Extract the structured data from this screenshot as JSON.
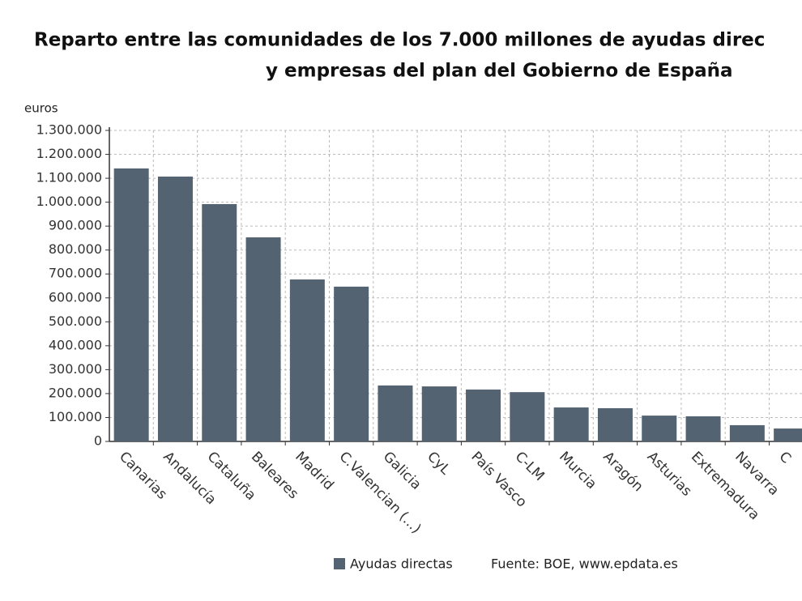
{
  "chart_data": {
    "type": "bar",
    "title": [
      "Reparto entre las comunidades de los 7.000 millones de ayudas direc",
      "y empresas del plan del Gobierno de España"
    ],
    "y_label": "euros",
    "categories": [
      "Canarias",
      "Andalucía",
      "Cataluña",
      "Baleares",
      "Madrid",
      "C.Valencian (...)",
      "Galicia",
      "CyL",
      "País Vasco",
      "C-LM",
      "Murcia",
      "Aragón",
      "Asturias",
      "Extremadura",
      "Navarra",
      "C"
    ],
    "series": [
      {
        "name": "Ayudas directas",
        "color": "#546372",
        "values": [
          1141000,
          1107000,
          992000,
          853000,
          677000,
          647000,
          234000,
          230000,
          217000,
          206000,
          142000,
          139000,
          108000,
          105000,
          68000,
          54000
        ]
      }
    ],
    "ylim": [
      0,
      1300000
    ],
    "yticks": [
      0,
      {
        "value": 100000,
        "label": "100.000"
      },
      {
        "value": 200000,
        "label": "200.000"
      },
      {
        "value": 300000,
        "label": "300.000"
      },
      {
        "value": 400000,
        "label": "400.000"
      },
      {
        "value": 500000,
        "label": "500.000"
      },
      {
        "value": 600000,
        "label": "600.000"
      },
      {
        "value": 700000,
        "label": "700.000"
      },
      {
        "value": 800000,
        "label": "800.000"
      },
      {
        "value": 900000,
        "label": "900.000"
      },
      {
        "value": 1000000,
        "label": "1.000.000"
      },
      {
        "value": 1100000,
        "label": "1.100.000"
      },
      {
        "value": 1200000,
        "label": "1.200.000"
      },
      {
        "value": 1300000,
        "label": "1.300.000"
      }
    ],
    "grid": true,
    "source": "Fuente: BOE, www.epdata.es"
  }
}
